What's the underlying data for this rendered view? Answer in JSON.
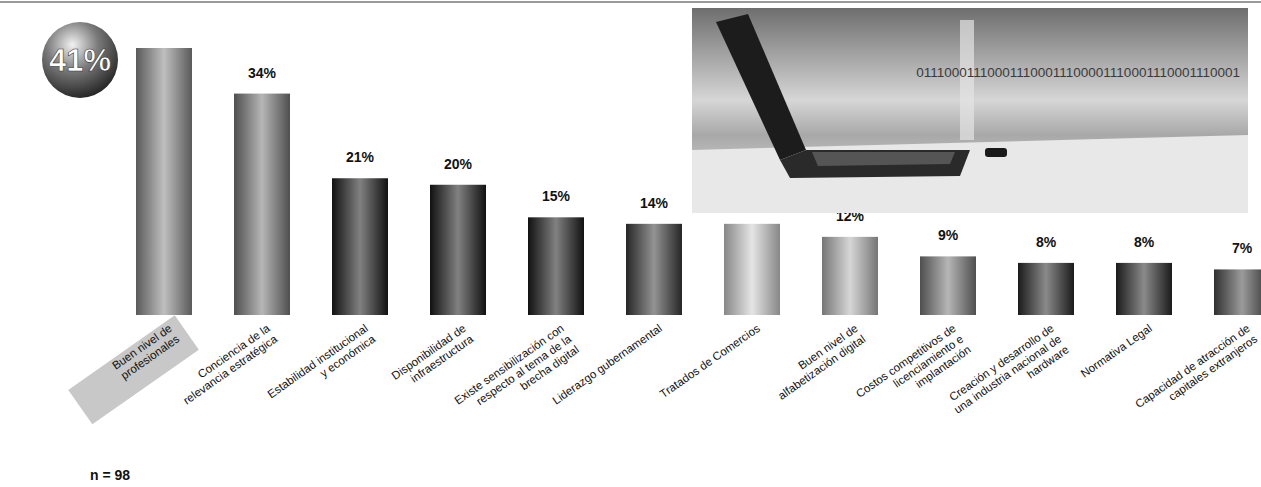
{
  "chart_data": {
    "type": "bar",
    "categories": [
      "Buen nivel de profesionales",
      "Conciencia de la relevancia estratégica",
      "Estabilidad institucional y económica",
      "Disponibilidad de infraestructura",
      "Existe sensibilización con respecto al tema de la brecha digital",
      "Liderazgo gubernamental",
      "Tratados de Comercios",
      "Buen nivel de alfabetización digital",
      "Costos competitivos de licenciamiento e implantación",
      "Creación y desarrollo de una industria nacional de hardware",
      "Normativa Legal",
      "Capacidad de atracción de capitales extranjeros"
    ],
    "values": [
      41,
      34,
      21,
      20,
      15,
      14,
      14,
      12,
      9,
      8,
      8,
      7
    ],
    "value_labels": [
      "41%",
      "34%",
      "21%",
      "20%",
      "15%",
      "14%",
      null,
      "12%",
      "9%",
      "8%",
      "8%",
      "7%"
    ],
    "colors": [
      "#8a8a8a",
      "#7a7a7a",
      "#1a1a1a",
      "#1a1a1a",
      "#1a1a1a",
      "#3a3a3a",
      "#d0d0d0",
      "#b5b5b5",
      "#7a7a7a",
      "#2a2a2a",
      "#2a2a2a",
      "#4a4a4a"
    ],
    "ylim": [
      0,
      41
    ],
    "data_labels": true,
    "tick_labels": "x",
    "grid": false,
    "annotations": [
      "n = 98",
      "011100011100011100011100001110001110001110001"
    ]
  }
}
